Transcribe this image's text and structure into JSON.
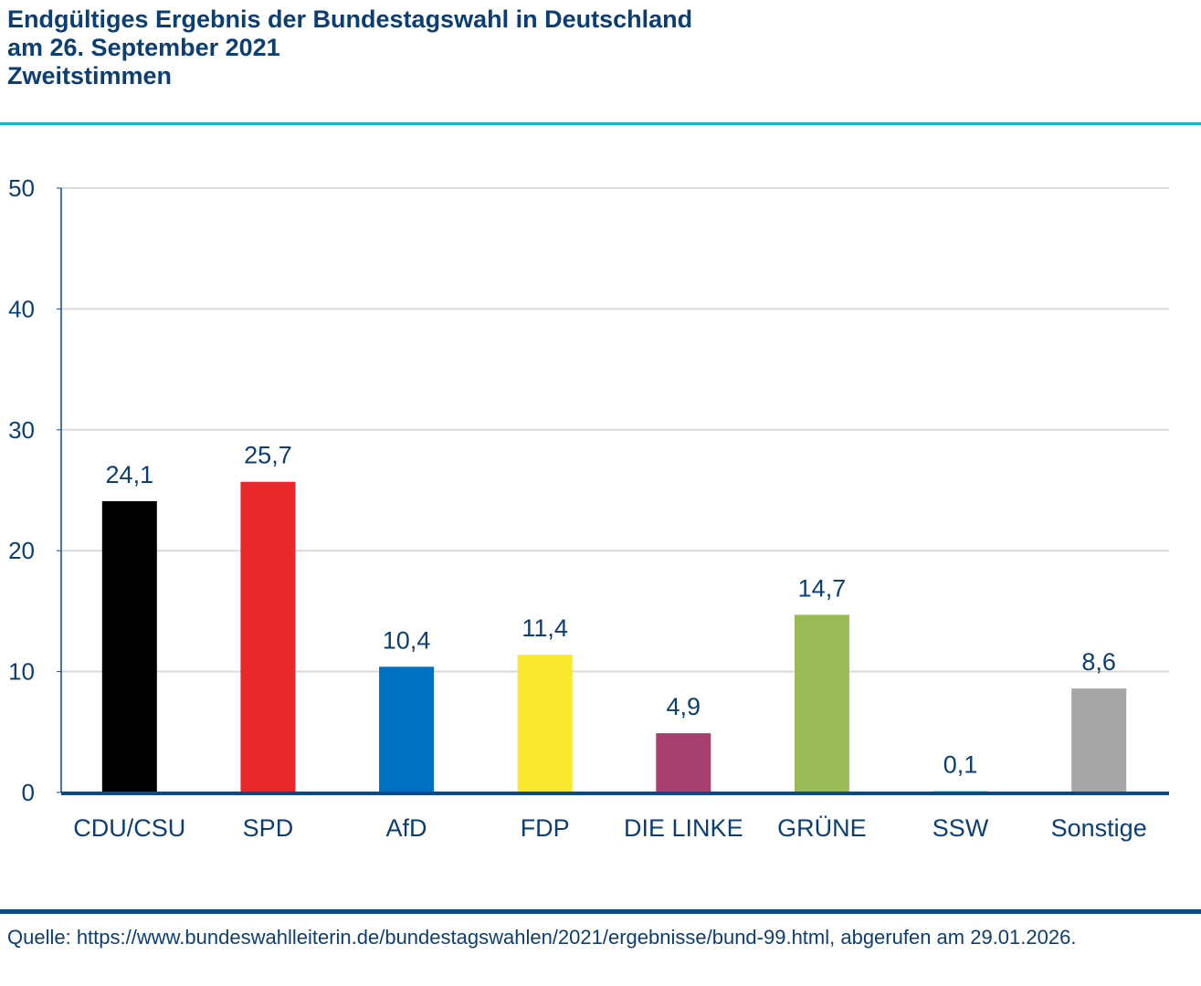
{
  "title": {
    "line1": "Endgültiges Ergebnis der Bundestagswahl in Deutschland",
    "line2": "am 26. September 2021",
    "line3": "Zweitstimmen"
  },
  "source": "Quelle: https://www.bundeswahlleiterin.de/bundestagswahlen/2021/ergebnisse/bund-99.html, abgerufen am 29.01.2026.",
  "colors": {
    "text": "#0b3e73",
    "accent_rule": "#12b8c4",
    "axis": "#0b4a86",
    "grid": "#d9d9d9"
  },
  "chart_data": {
    "type": "bar",
    "title": "Endgültiges Ergebnis der Bundestagswahl in Deutschland am 26. September 2021 – Zweitstimmen",
    "xlabel": "",
    "ylabel": "",
    "ylim": [
      0,
      50
    ],
    "yticks": [
      0,
      10,
      20,
      30,
      40,
      50
    ],
    "grid": true,
    "legend": "none",
    "categories": [
      "CDU/CSU",
      "SPD",
      "AfD",
      "FDP",
      "DIE LINKE",
      "GRÜNE",
      "SSW",
      "Sonstige"
    ],
    "values": [
      24.1,
      25.7,
      10.4,
      11.4,
      4.9,
      14.7,
      0.1,
      8.6
    ],
    "data_labels": [
      "24,1",
      "25,7",
      "10,4",
      "11,4",
      "4,9",
      "14,7",
      "0,1",
      "8,6"
    ],
    "bar_colors": [
      "#000000",
      "#e8282b",
      "#0070c0",
      "#fbe92f",
      "#a8406f",
      "#9bbb59",
      "#00a0a0",
      "#a6a6a6"
    ]
  }
}
